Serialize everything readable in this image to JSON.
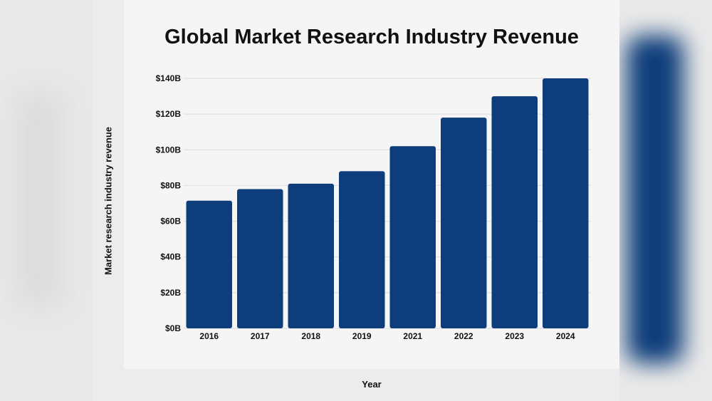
{
  "chart_data": {
    "type": "bar",
    "title": "Global Market Research Industry Revenue",
    "xlabel": "Year",
    "ylabel": "Market research industry revenue",
    "categories": [
      "2016",
      "2017",
      "2018",
      "2019",
      "2021",
      "2022",
      "2023",
      "2024"
    ],
    "values": [
      71.5,
      78,
      81,
      88,
      102,
      118,
      130,
      140
    ],
    "ylim": [
      0,
      140
    ],
    "yticks": [
      "$0B",
      "$20B",
      "$40B",
      "$60B",
      "$80B",
      "$100B",
      "$120B",
      "$140B"
    ],
    "ytick_values": [
      0,
      20,
      40,
      60,
      80,
      100,
      120,
      140
    ],
    "grid": true,
    "legend": "none",
    "colors": {
      "bar": "#0d3d7a",
      "grid": "#dcdcdc",
      "text": "#111111"
    }
  }
}
